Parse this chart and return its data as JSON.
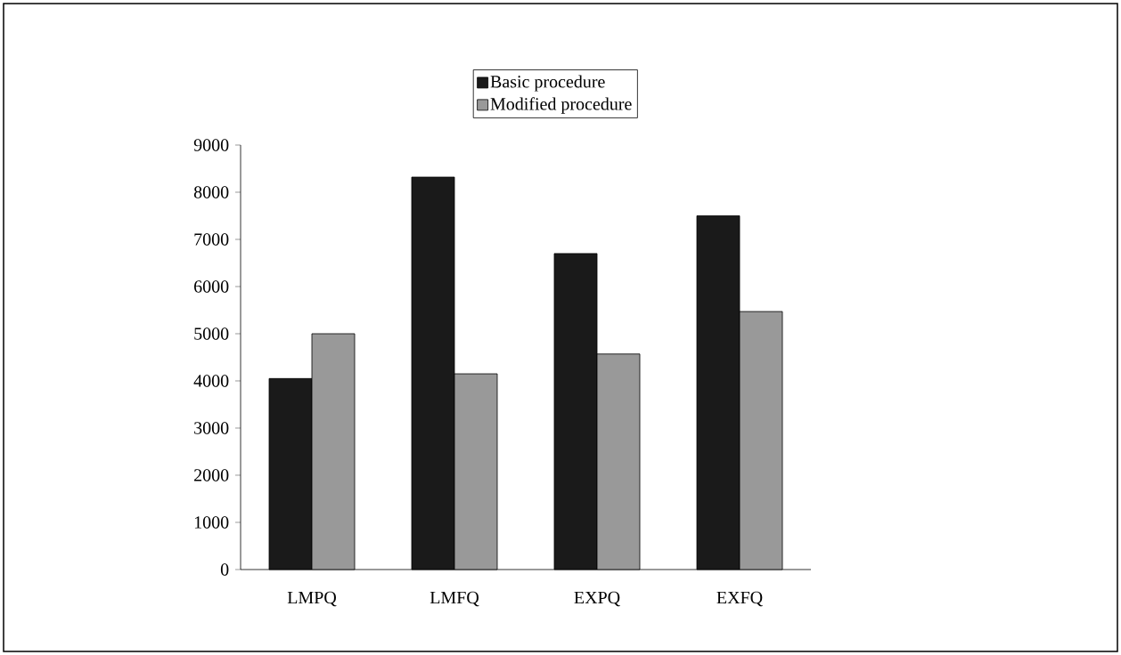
{
  "chart_data": {
    "type": "bar",
    "categories": [
      "LMPQ",
      "LMFQ",
      "EXPQ",
      "EXFQ"
    ],
    "series": [
      {
        "name": "Basic procedure",
        "color": "#1a1a1a",
        "values": [
          4050,
          8320,
          6700,
          7500
        ]
      },
      {
        "name": "Modified procedure",
        "color": "#999999",
        "values": [
          5000,
          4150,
          4570,
          5470
        ]
      }
    ],
    "ylim": [
      0,
      9000
    ],
    "yticks": [
      0,
      1000,
      2000,
      3000,
      4000,
      5000,
      6000,
      7000,
      8000,
      9000
    ],
    "legend": "top"
  }
}
